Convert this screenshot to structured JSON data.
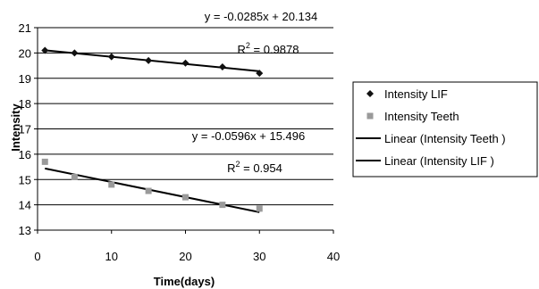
{
  "chart_data": {
    "type": "scatter",
    "xlabel": "Time(days)",
    "ylabel": "Intensity",
    "xlim": [
      0,
      40
    ],
    "ylim": [
      13,
      21
    ],
    "xticks": [
      "0",
      "10",
      "20",
      "30",
      "40"
    ],
    "yticks": [
      "13",
      "14",
      "15",
      "16",
      "17",
      "18",
      "19",
      "20",
      "21"
    ],
    "grid": "horizontal",
    "legend_position": "right",
    "series": [
      {
        "name": "Intensity LIF",
        "marker": "diamond",
        "color": "#111111",
        "x": [
          1,
          5,
          10,
          15,
          20,
          25,
          30
        ],
        "y": [
          20.1,
          20.0,
          19.85,
          19.7,
          19.6,
          19.45,
          19.2
        ]
      },
      {
        "name": "Intensity Teeth",
        "marker": "square",
        "color": "#9a9a9a",
        "x": [
          1,
          5,
          10,
          15,
          20,
          25,
          30
        ],
        "y": [
          15.7,
          15.1,
          14.8,
          14.55,
          14.3,
          14.0,
          13.85
        ]
      }
    ],
    "trendlines": [
      {
        "name": "Linear (Intensity Teeth )",
        "color": "#000000",
        "slope": -0.0596,
        "intercept": 15.496,
        "x_range": [
          1,
          30
        ]
      },
      {
        "name": "Linear (Intensity LIF )",
        "color": "#000000",
        "slope": -0.0285,
        "intercept": 20.134,
        "x_range": [
          1,
          30
        ]
      }
    ],
    "annotations": [
      {
        "equation": "y = -0.0285x + 20.134",
        "r2_label": "R",
        "r2_sup": "2",
        "r2_value": " = 0.9878"
      },
      {
        "equation": "y = -0.0596x + 15.496",
        "r2_label": "R",
        "r2_sup": "2",
        "r2_value": " = 0.954"
      }
    ],
    "legend": [
      {
        "label": "Intensity LIF",
        "symbol": "diamond",
        "color": "#111111"
      },
      {
        "label": "Intensity Teeth",
        "symbol": "square",
        "color": "#9a9a9a"
      },
      {
        "label": "Linear (Intensity Teeth )",
        "symbol": "line",
        "color": "#000000"
      },
      {
        "label": "Linear (Intensity LIF )",
        "symbol": "line",
        "color": "#000000"
      }
    ]
  }
}
